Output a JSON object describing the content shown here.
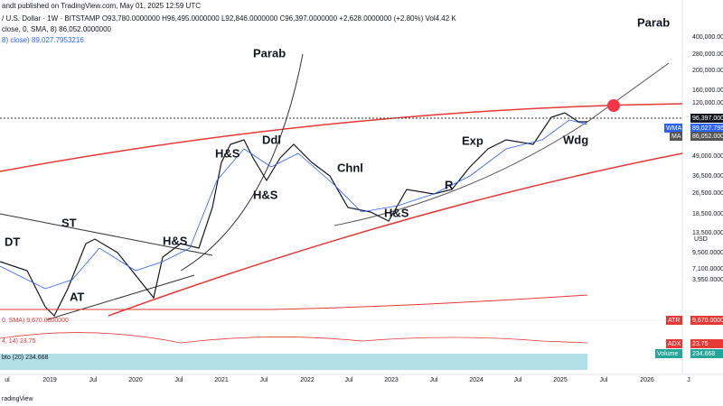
{
  "header": {
    "published": "andt published on TradingView.com, May 01, 2025 12:59 UTC",
    "symbol": "/ U.S. Dollar · 1W · BITSTAMP  O93,780.0000000  H96,495.0000000  L92,846.0000000  C96,397.0000000  +2,628.0000000 (+2.80%)  Vol4.42 K",
    "ma1": "close, 0, SMA, 8)  86,052.0000000",
    "ma2": "8) close)  89,027.7953216"
  },
  "annotations": [
    "Parab",
    "Parab",
    "Ddl",
    "H&S",
    "H&S",
    "Chnl",
    "ST",
    "H&S",
    "DT",
    "AT",
    "H&S",
    "R",
    "Exp",
    "Wdg"
  ],
  "price_axis": {
    "labels": [
      "400,000.0000",
      "280,000.0000",
      "200,000.0000",
      "160,000.0000",
      "120,000.0000",
      "49,000.0000",
      "36,500.0000",
      "26,500.0000",
      "18,500.0000",
      "13,500.0000",
      "9,500.0000",
      "7,100.0000",
      "3,950.0000"
    ],
    "currency": "USD",
    "last_price": "96,397.000",
    "wma_tag": "WMA",
    "wma_value": "89,027.795",
    "ma_tag": "MA",
    "ma_value": "86,052.000"
  },
  "indicators": {
    "atr_legend": "0, SMA)  9,670.0000000",
    "atr_tag": "ATR",
    "atr_value": "9,670.0000",
    "adx_legend": "4, 14)  23.75",
    "adx_tag": "ADX",
    "adx_value": "23.75",
    "volume_legend": "bto (20)  234.668",
    "volume_tag": "Volume",
    "volume_value": "234.668"
  },
  "time_axis": [
    "ul",
    "2019",
    "Jul",
    "2020",
    "Jul",
    "2021",
    "Jul",
    "2022",
    "Jul",
    "2023",
    "Jul",
    "2024",
    "Jul",
    "2025",
    "Jul",
    "2026",
    "J"
  ],
  "footer": "radingView"
}
